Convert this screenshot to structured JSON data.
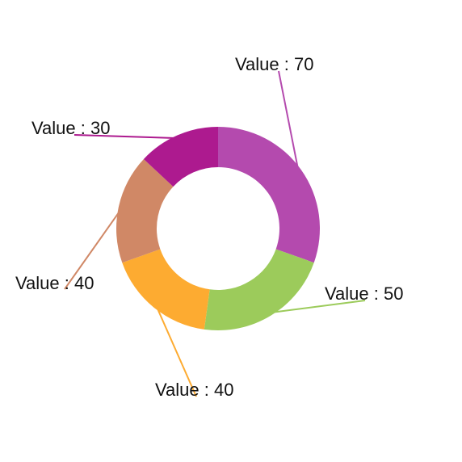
{
  "chart_data": {
    "type": "pie",
    "variant": "donut",
    "title": "",
    "start_angle_deg": 0,
    "direction": "clockwise",
    "label_prefix": "Value : ",
    "slices": [
      {
        "value": 70,
        "label": "Value : 70",
        "color": "#b44aae"
      },
      {
        "value": 50,
        "label": "Value : 50",
        "color": "#9ccb5b"
      },
      {
        "value": 40,
        "label": "Value : 40",
        "color": "#fdab31"
      },
      {
        "value": 40,
        "label": "Value : 40",
        "color": "#d08866"
      },
      {
        "value": 30,
        "label": "Value : 30",
        "color": "#ad1a8f"
      }
    ],
    "legend": "none"
  }
}
